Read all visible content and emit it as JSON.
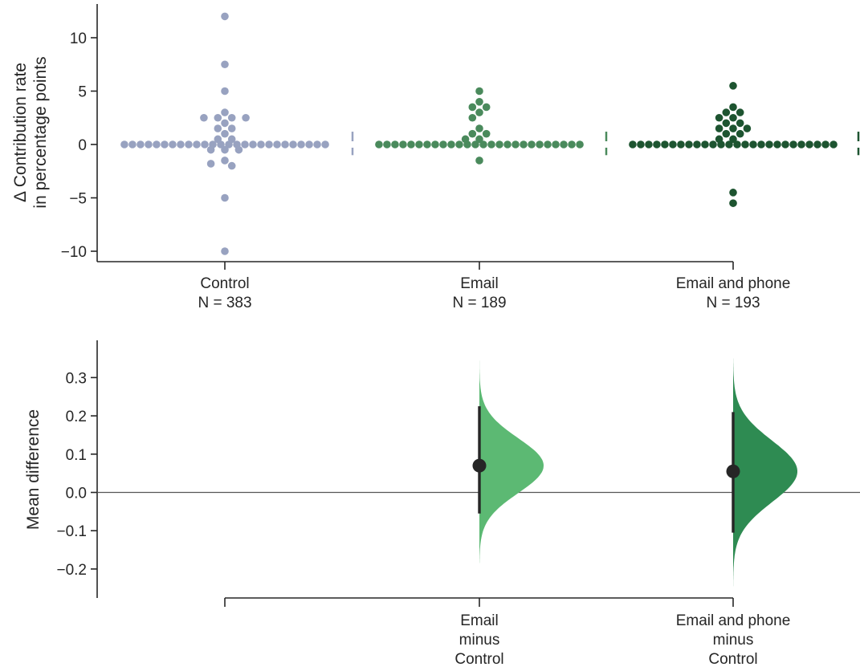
{
  "chart_data": [
    {
      "type": "scatter",
      "style": "swarm",
      "ylabel": [
        "Δ Contribution rate",
        "in percentage points"
      ],
      "ylim": [
        -11,
        13
      ],
      "yticks": [
        -10,
        -5,
        0,
        5,
        10
      ],
      "categories": [
        {
          "label": "Control",
          "n_label": "N = 383",
          "color": "#98a2c0"
        },
        {
          "label": "Email",
          "n_label": "N = 189",
          "color": "#4a8a5c"
        },
        {
          "label": "Email and phone",
          "n_label": "N = 193",
          "color": "#1d5430"
        }
      ],
      "series": [
        {
          "category": "Control",
          "values": [
            12,
            7.5,
            5,
            3,
            2.5,
            2.5,
            2.5,
            2.5,
            2,
            1.5,
            1.5,
            1,
            0.5,
            0.5,
            -0.5,
            -0.5,
            -0.5,
            -1.5,
            -1.8,
            -2,
            -5,
            -10
          ]
        },
        {
          "category": "Email",
          "values": [
            5,
            4,
            3.5,
            3.5,
            3,
            2.5,
            1.5,
            1,
            1,
            0.5,
            0.5,
            -1.5
          ]
        },
        {
          "category": "Email and phone",
          "values": [
            5.5,
            3.5,
            3,
            3,
            2.5,
            2.5,
            2,
            2,
            1.5,
            1.5,
            1.5,
            1,
            1,
            0.5,
            0.5,
            -4.5,
            -5.5
          ]
        }
      ],
      "zero_row_counts": [
        26,
        26,
        26
      ],
      "grid": false
    },
    {
      "type": "area",
      "style": "bootstrap-distribution",
      "ylabel": "Mean difference",
      "ylim": [
        -0.27,
        0.39
      ],
      "yticks": [
        -0.2,
        -0.1,
        0.0,
        0.1,
        0.2,
        0.3
      ],
      "ytick_labels": [
        "−0.2",
        "−0.1",
        "0.0",
        "0.1",
        "0.2",
        "0.3"
      ],
      "categories": [
        {
          "lines": [
            "Email",
            "minus",
            "Control"
          ]
        },
        {
          "lines": [
            "Email and phone",
            "minus",
            "Control"
          ]
        }
      ],
      "comparisons": [
        {
          "name": "Email minus Control",
          "mean": 0.07,
          "ci_low": -0.055,
          "ci_high": 0.225,
          "dist_min": -0.185,
          "dist_max": 0.365,
          "color": "#5cb973"
        },
        {
          "name": "Email and phone minus Control",
          "mean": 0.055,
          "ci_low": -0.105,
          "ci_high": 0.21,
          "dist_min": -0.245,
          "dist_max": 0.35,
          "color": "#2e8b52"
        }
      ],
      "grid": false
    }
  ]
}
